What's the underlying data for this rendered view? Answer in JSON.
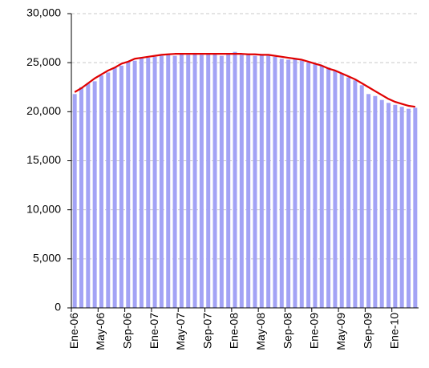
{
  "chart_data": {
    "type": "bar",
    "categories": [
      "Ene-06",
      null,
      null,
      null,
      "May-06",
      null,
      null,
      null,
      "Sep-06",
      null,
      null,
      null,
      "Ene-07",
      null,
      null,
      null,
      "May-07",
      null,
      null,
      null,
      "Sep-07",
      null,
      null,
      null,
      "Ene-08",
      null,
      null,
      null,
      "May-08",
      null,
      null,
      null,
      "Sep-08",
      null,
      null,
      null,
      "Ene-09",
      null,
      null,
      null,
      "May-09",
      null,
      null,
      null,
      "Sep-09",
      null,
      null,
      null,
      "Ene-10",
      null,
      null,
      null
    ],
    "series": [
      {
        "type": "bar",
        "color": "#a3a3f5",
        "values": [
          21800,
          22500,
          22900,
          23100,
          23700,
          24000,
          24500,
          24700,
          25100,
          25200,
          25500,
          25500,
          25600,
          25700,
          25800,
          25700,
          25900,
          25800,
          26000,
          25800,
          25900,
          25900,
          25700,
          25900,
          26100,
          25800,
          25900,
          25700,
          25800,
          25700,
          25600,
          25400,
          25300,
          25400,
          25200,
          25000,
          24900,
          24700,
          24500,
          24200,
          23900,
          23500,
          23200,
          22700,
          21800,
          21600,
          21200,
          20900,
          20700,
          20500,
          20300,
          20400
        ]
      },
      {
        "type": "line",
        "color": "#e00000",
        "values": [
          22000,
          22400,
          22900,
          23400,
          23800,
          24200,
          24500,
          24900,
          25100,
          25400,
          25500,
          25600,
          25700,
          25800,
          25850,
          25900,
          25900,
          25900,
          25900,
          25900,
          25900,
          25900,
          25900,
          25900,
          25900,
          25900,
          25850,
          25850,
          25800,
          25800,
          25700,
          25600,
          25500,
          25400,
          25300,
          25100,
          24900,
          24700,
          24400,
          24200,
          23900,
          23600,
          23300,
          22900,
          22500,
          22100,
          21700,
          21300,
          21000,
          20800,
          20600,
          20500
        ]
      }
    ],
    "ylim": [
      0,
      30000
    ],
    "yticks": [
      0,
      {
        "value": 5000,
        "label": "5,000"
      },
      {
        "value": 10000,
        "label": "10,000"
      },
      {
        "value": 15000,
        "label": "15,000"
      },
      {
        "value": 20000,
        "label": "20,000"
      },
      {
        "value": 25000,
        "label": "25,000"
      },
      {
        "value": 30000,
        "label": "30,000"
      }
    ],
    "grid": true
  }
}
